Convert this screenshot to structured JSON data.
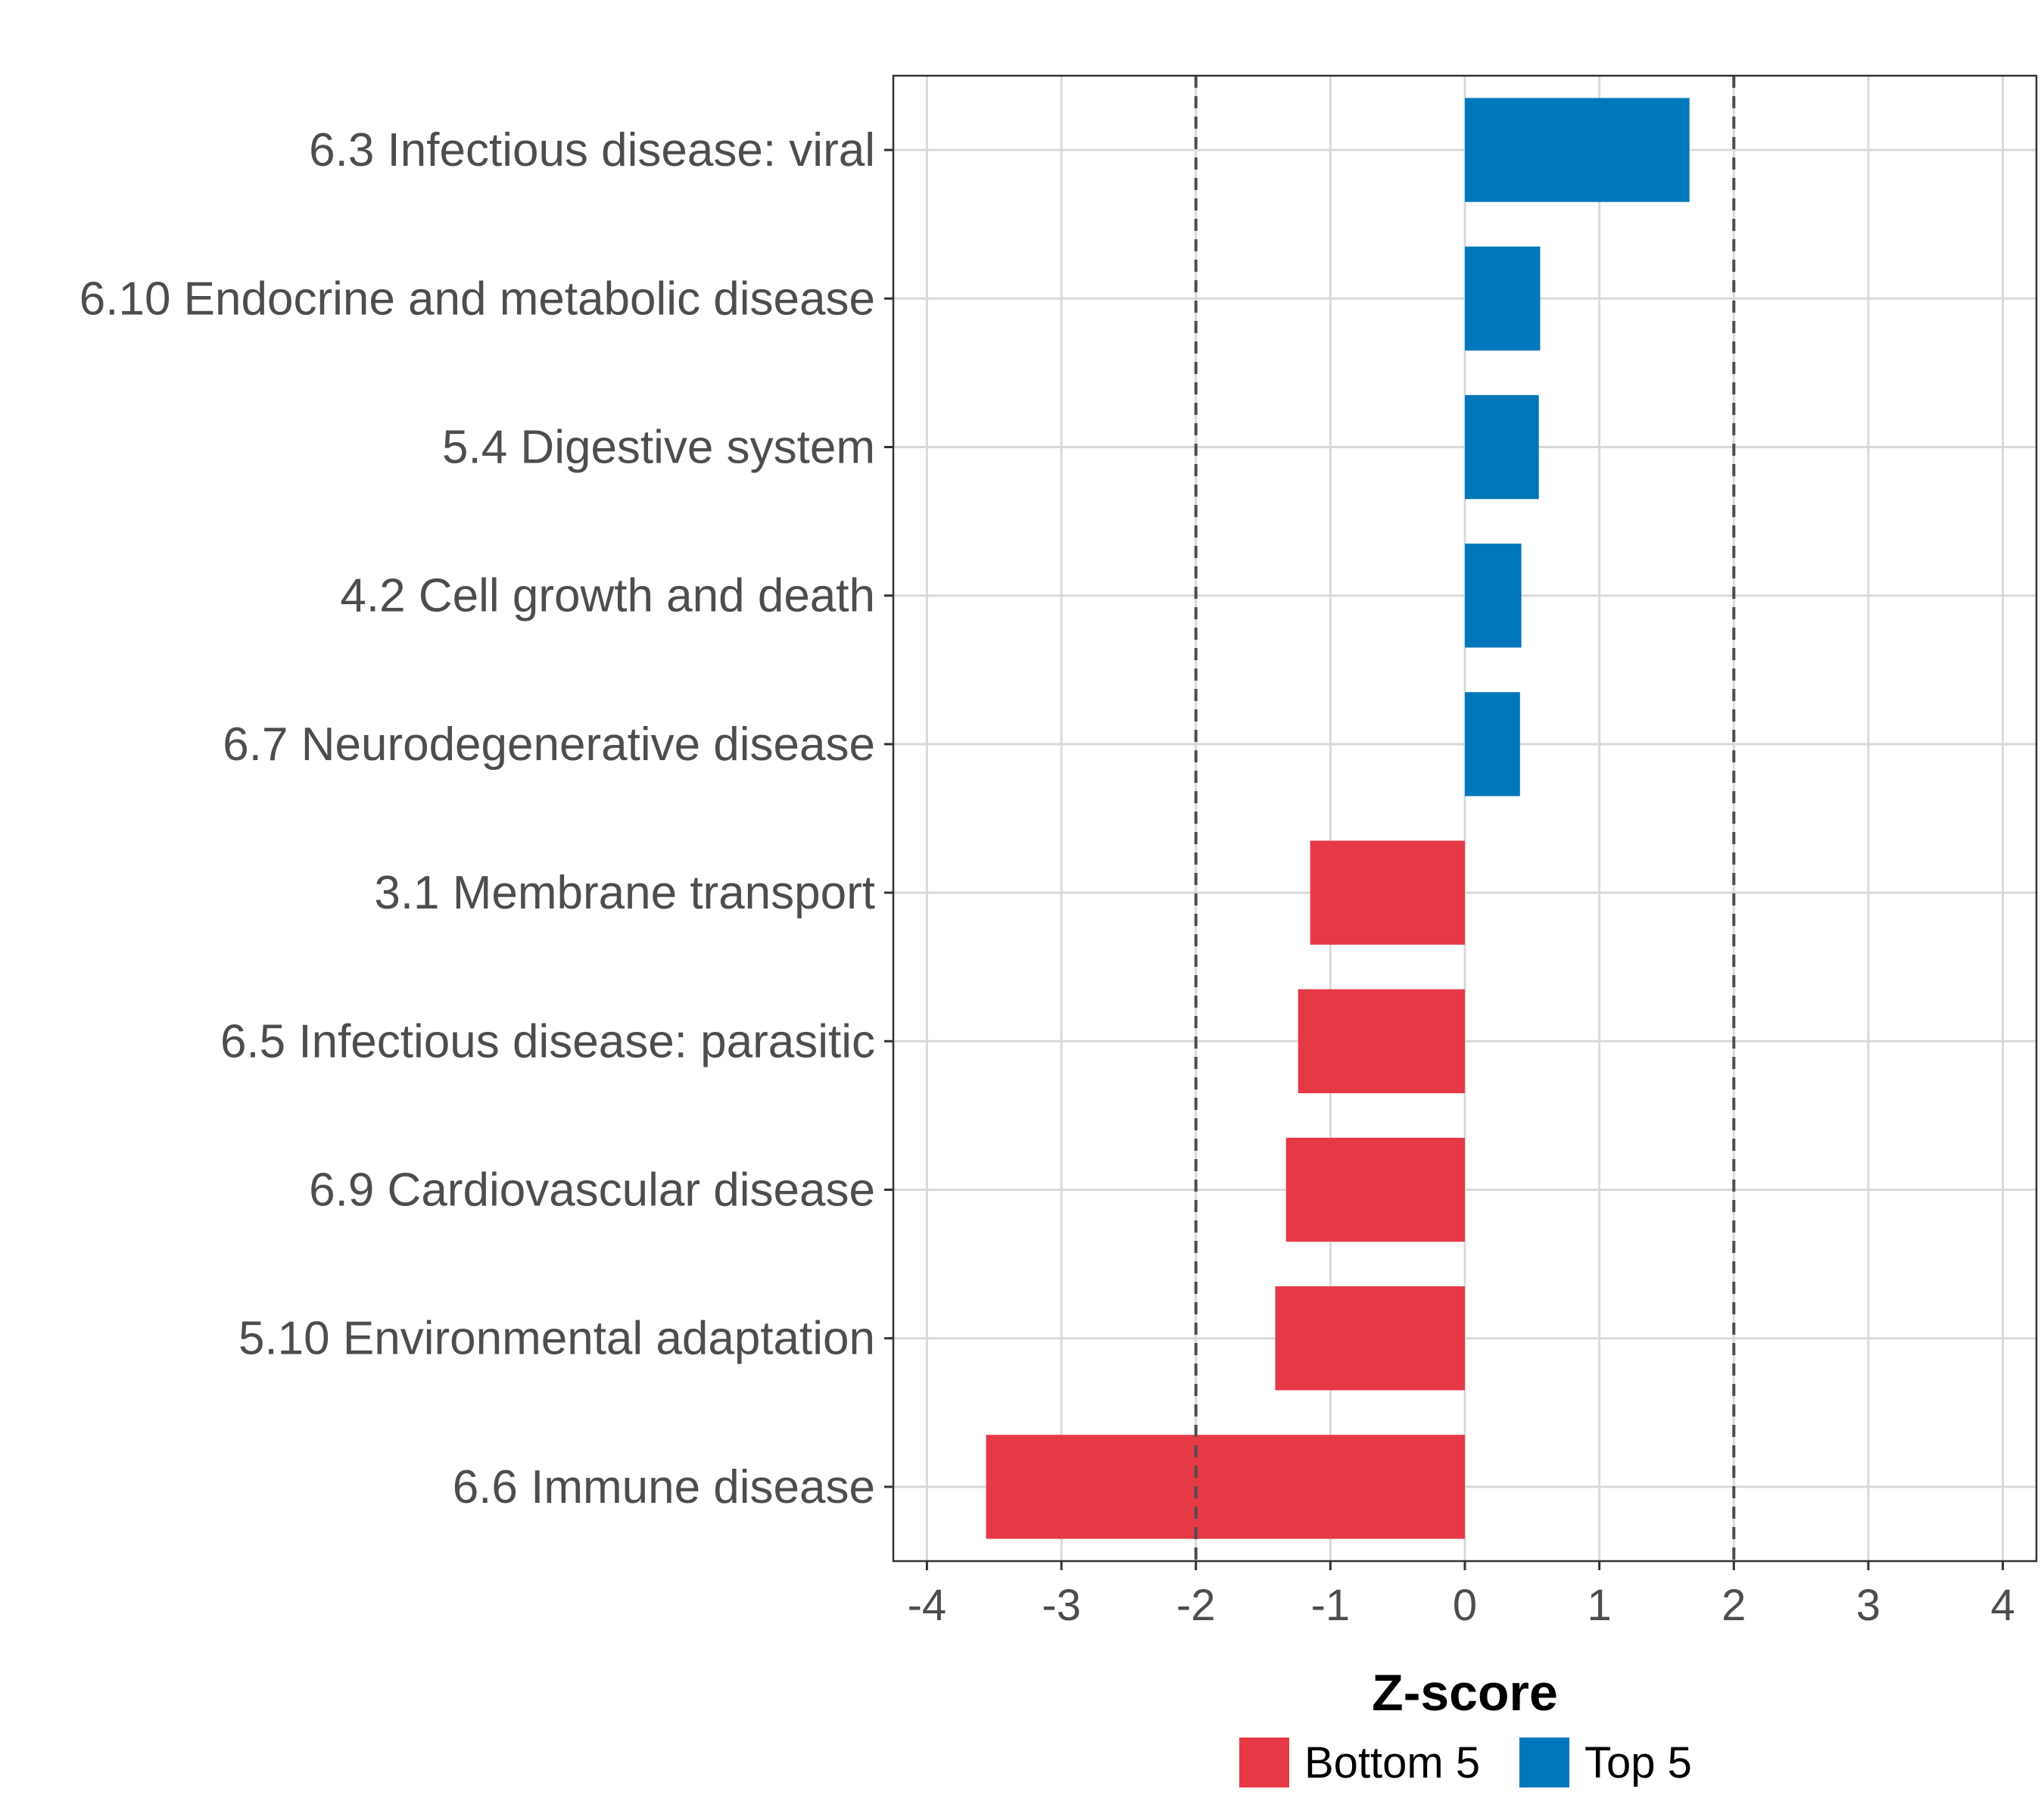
{
  "chart_data": {
    "type": "bar",
    "orientation": "horizontal",
    "title": "",
    "xlabel": "Z-score",
    "ylabel": "",
    "xlim": [
      -4.25,
      4.25
    ],
    "x_ticks": [
      -4,
      -3,
      -2,
      -1,
      0,
      1,
      2,
      3,
      4
    ],
    "reference_lines": [
      -2,
      2
    ],
    "grid": true,
    "categories": [
      "6.3 Infectious disease: viral",
      "6.10 Endocrine and metabolic disease",
      "5.4 Digestive system",
      "4.2 Cell growth and death",
      "6.7 Neurodegenerative disease",
      "3.1 Membrane transport",
      "6.5 Infectious disease: parasitic",
      "6.9 Cardiovascular disease",
      "5.10 Environmental adaptation",
      "6.6 Immune disease"
    ],
    "values": [
      1.67,
      0.56,
      0.55,
      0.42,
      0.41,
      -1.15,
      -1.24,
      -1.33,
      -1.41,
      -3.56
    ],
    "groups": [
      "Top 5",
      "Top 5",
      "Top 5",
      "Top 5",
      "Top 5",
      "Bottom 5",
      "Bottom 5",
      "Bottom 5",
      "Bottom 5",
      "Bottom 5"
    ],
    "legend": {
      "position": "bottom",
      "entries": [
        {
          "label": "Bottom 5",
          "color": "#E63946"
        },
        {
          "label": "Top 5",
          "color": "#0077BB"
        }
      ]
    }
  }
}
